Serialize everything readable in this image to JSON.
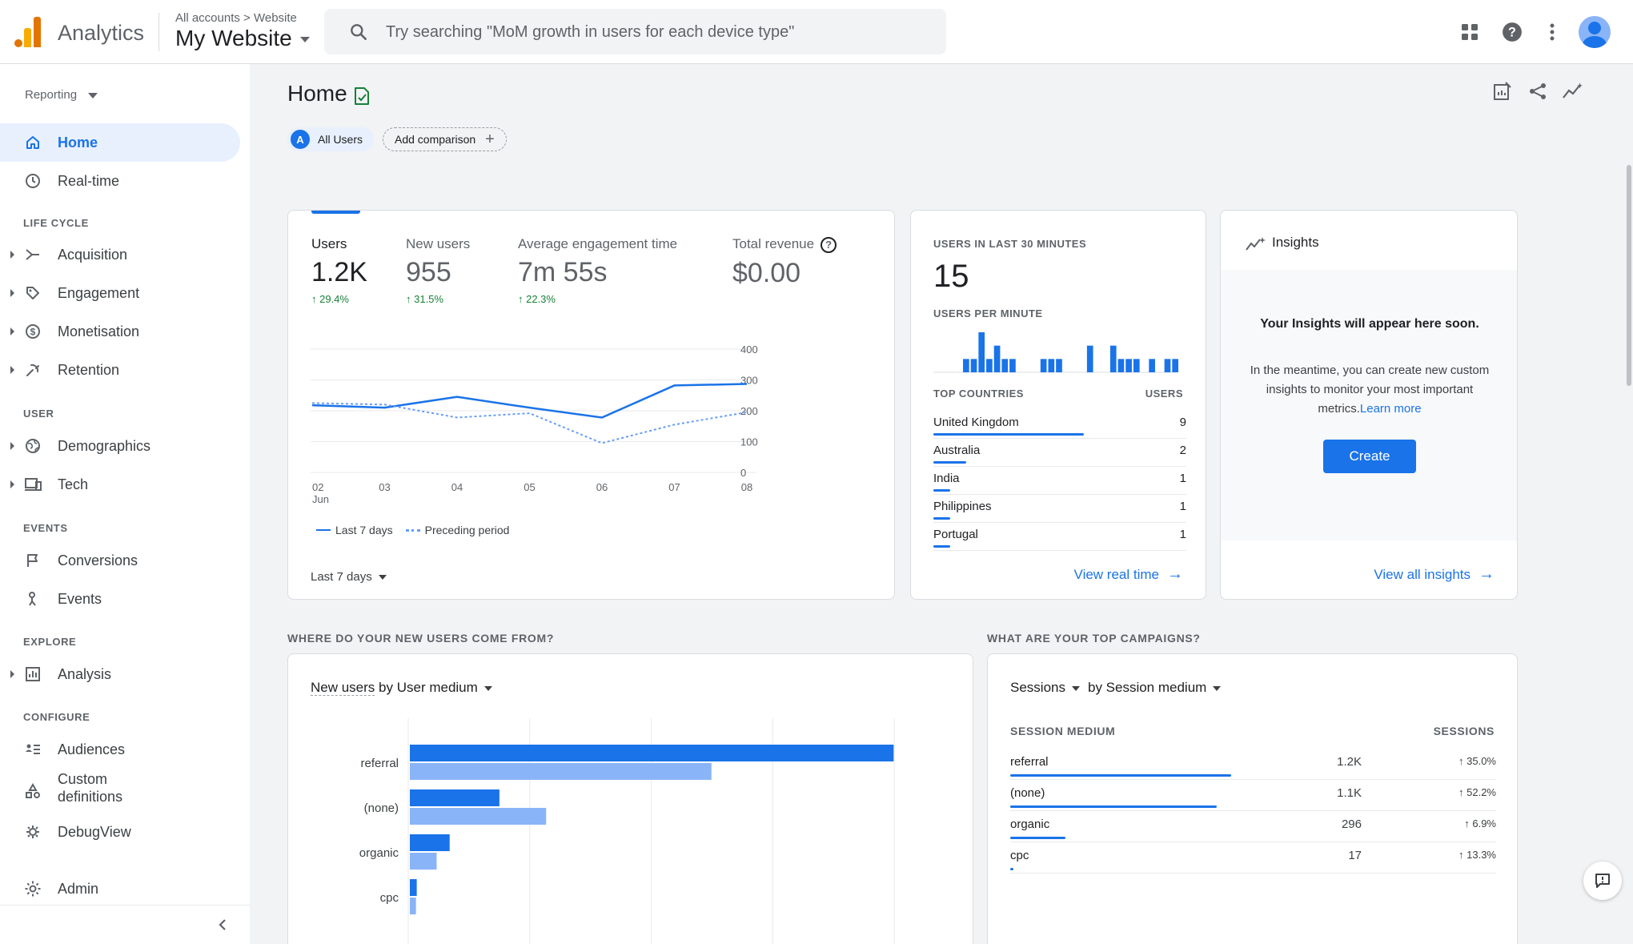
{
  "app": {
    "name": "Analytics",
    "crumb": "All accounts > Website",
    "property": "My Website"
  },
  "search": {
    "placeholder": "Try searching \"MoM growth in users for each device type\""
  },
  "sidebar": {
    "reporting": "Reporting",
    "home": "Home",
    "realtime": "Real-time",
    "lifecycle_label": "LIFE CYCLE",
    "acquisition": "Acquisition",
    "engagement": "Engagement",
    "monetisation": "Monetisation",
    "retention": "Retention",
    "user_label": "USER",
    "demographics": "Demographics",
    "tech": "Tech",
    "events_label": "EVENTS",
    "conversions": "Conversions",
    "events": "Events",
    "explore_label": "EXPLORE",
    "analysis": "Analysis",
    "configure_label": "CONFIGURE",
    "audiences": "Audiences",
    "custom_definitions_1": "Custom",
    "custom_definitions_2": "definitions",
    "debugview": "DebugView",
    "admin": "Admin"
  },
  "page": {
    "title": "Home",
    "chip_all": "All Users",
    "chip_all_letter": "A",
    "chip_add": "Add comparison"
  },
  "metrics": [
    {
      "label": "Users",
      "value": "1.2K",
      "change": "↑ 29.4%"
    },
    {
      "label": "New users",
      "value": "955",
      "change": "↑ 31.5%"
    },
    {
      "label": "Average engagement time",
      "value": "7m 55s",
      "change": "↑ 22.3%"
    },
    {
      "label": "Total revenue",
      "value": "$0.00"
    }
  ],
  "main_chart": {
    "legend_current": "Last 7 days",
    "legend_previous": "Preceding period",
    "range": "Last 7 days",
    "month": "Jun"
  },
  "chart_data": {
    "type": "line",
    "x": [
      "02",
      "03",
      "04",
      "05",
      "06",
      "07",
      "08"
    ],
    "yticks": [
      0,
      100,
      200,
      300,
      400
    ],
    "ylim": [
      0,
      400
    ],
    "series": [
      {
        "name": "Last 7 days",
        "values": [
          218,
          210,
          245,
          210,
          178,
          282,
          287
        ],
        "color": "#1a73e8"
      },
      {
        "name": "Preceding period",
        "values": [
          225,
          220,
          178,
          192,
          95,
          155,
          195
        ],
        "color": "#669df6"
      }
    ]
  },
  "realtime": {
    "label": "USERS IN LAST 30 MINUTES",
    "value": "15",
    "per_minute_label": "USERS PER MINUTE",
    "per_minute": [
      0,
      0,
      0,
      1,
      1,
      3,
      1,
      2,
      1,
      1,
      0,
      0,
      0,
      1,
      1,
      1,
      0,
      0,
      0,
      2,
      0,
      0,
      2,
      1,
      1,
      1,
      0,
      1,
      0,
      1,
      1
    ],
    "countries_label": "TOP COUNTRIES",
    "users_label": "USERS",
    "countries": [
      {
        "name": "United Kingdom",
        "users": "9",
        "share": 1.0
      },
      {
        "name": "Australia",
        "users": "2",
        "share": 0.22
      },
      {
        "name": "India",
        "users": "1",
        "share": 0.11
      },
      {
        "name": "Philippines",
        "users": "1",
        "share": 0.11
      },
      {
        "name": "Portugal",
        "users": "1",
        "share": 0.11
      }
    ],
    "view_link": "View real time"
  },
  "insights": {
    "title": "Insights",
    "lead": "Your Insights will appear here soon.",
    "text": "In the meantime, you can create new custom insights to monitor your most important metrics.",
    "learn_more": "Learn more",
    "create": "Create",
    "view_all": "View all insights"
  },
  "sources": {
    "section": "WHERE DO YOUR NEW USERS COME FROM?",
    "metric": "New users",
    "by": " by User medium",
    "rows": [
      {
        "label": "referral",
        "current": 632,
        "previous": 394
      },
      {
        "label": "(none)",
        "current": 117,
        "previous": 178
      },
      {
        "label": "organic",
        "current": 52,
        "previous": 35
      },
      {
        "label": "cpc",
        "current": 9,
        "previous": 8
      }
    ],
    "max": 640
  },
  "campaigns": {
    "section": "WHAT ARE YOUR TOP CAMPAIGNS?",
    "metric": "Sessions",
    "by": "by Session medium",
    "col_medium": "SESSION MEDIUM",
    "col_sessions": "SESSIONS",
    "rows": [
      {
        "medium": "referral",
        "sessions": "1.2K",
        "change": "↑ 35.0%",
        "share": 0.46
      },
      {
        "medium": "(none)",
        "sessions": "1.1K",
        "change": "↑ 52.2%",
        "share": 0.43
      },
      {
        "medium": "organic",
        "sessions": "296",
        "change": "↑ 6.9%",
        "share": 0.115
      },
      {
        "medium": "cpc",
        "sessions": "17",
        "change": "↑ 13.3%",
        "share": 0.007
      }
    ]
  }
}
